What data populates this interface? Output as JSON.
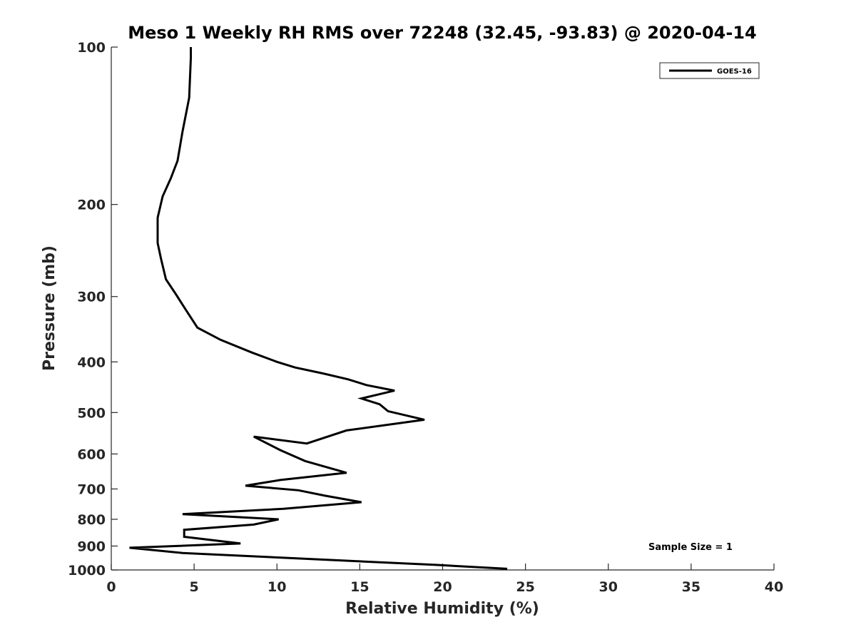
{
  "chart_data": {
    "type": "line",
    "title": "Meso 1 Weekly RH RMS over 72248 (32.45, -93.83) @ 2020-04-14",
    "xlabel": "Relative Humidity (%)",
    "ylabel": "Pressure (mb)",
    "xlim": [
      0,
      40
    ],
    "ylim": [
      100,
      1000
    ],
    "y_scale": "log",
    "y_reversed": true,
    "grid": false,
    "legend_position": "top-right",
    "x_ticks": [
      0,
      5,
      10,
      15,
      20,
      25,
      30,
      35,
      40
    ],
    "x_tick_labels": [
      "0",
      "5",
      "10",
      "15",
      "20",
      "25",
      "30",
      "35",
      "40"
    ],
    "y_ticks": [
      100,
      200,
      300,
      400,
      500,
      600,
      700,
      800,
      900,
      1000
    ],
    "y_tick_labels": [
      "100",
      "200",
      "300",
      "400",
      "500",
      "600",
      "700",
      "800",
      "900",
      "1000"
    ],
    "annotation": "Sample Size = 1",
    "series": [
      {
        "name": "GOES-16",
        "color": "#000000",
        "x": [
          4.8,
          4.8,
          4.7,
          4.3,
          4.0,
          3.6,
          3.1,
          2.8,
          2.8,
          3.0,
          3.3,
          3.9,
          4.5,
          5.2,
          6.6,
          8.5,
          10.0,
          11.1,
          12.8,
          14.3,
          15.4,
          17.1,
          15.1,
          16.2,
          16.7,
          18.9,
          14.2,
          11.8,
          8.6,
          10.2,
          11.7,
          14.2,
          10.2,
          8.1,
          11.3,
          12.9,
          15.1,
          10.4,
          4.3,
          10.1,
          8.6,
          4.4,
          4.4,
          7.8,
          1.1,
          4.3,
          10.5,
          19.6,
          23.9
        ],
        "y": [
          100,
          105,
          125,
          145,
          165,
          178,
          193,
          212,
          237,
          254,
          278,
          297,
          318,
          344,
          363,
          384,
          400,
          410,
          421,
          432,
          443,
          454,
          470,
          482,
          497,
          516,
          541,
          573,
          556,
          590,
          619,
          652,
          673,
          690,
          704,
          721,
          742,
          764,
          782,
          800,
          819,
          838,
          864,
          890,
          907,
          928,
          948,
          978,
          995
        ]
      }
    ]
  }
}
